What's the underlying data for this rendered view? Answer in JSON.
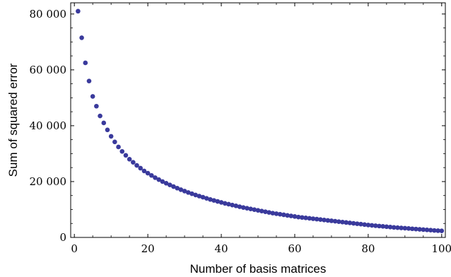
{
  "chart_data": {
    "type": "scatter",
    "title": "",
    "xlabel": "Number of basis matrices",
    "ylabel": "Sum of squared error",
    "xlim": [
      -1,
      101
    ],
    "ylim": [
      0,
      84000
    ],
    "x_ticks": [
      0,
      20,
      40,
      60,
      80,
      100
    ],
    "x_tick_labels": [
      "0",
      "20",
      "40",
      "60",
      "80",
      "100"
    ],
    "y_ticks": [
      0,
      20000,
      40000,
      60000,
      80000
    ],
    "y_tick_labels": [
      "0",
      "20 000",
      "40 000",
      "60 000",
      "80 000"
    ],
    "grid": false,
    "marker_color": "#3a3a9c",
    "series": [
      {
        "x": [
          1,
          2,
          3,
          4,
          5,
          6,
          7,
          8,
          9,
          10,
          11,
          12,
          13,
          14,
          15,
          16,
          17,
          18,
          19,
          20,
          21,
          22,
          23,
          24,
          25,
          26,
          27,
          28,
          29,
          30,
          31,
          32,
          33,
          34,
          35,
          36,
          37,
          38,
          39,
          40,
          41,
          42,
          43,
          44,
          45,
          46,
          47,
          48,
          49,
          50,
          51,
          52,
          53,
          54,
          55,
          56,
          57,
          58,
          59,
          60,
          61,
          62,
          63,
          64,
          65,
          66,
          67,
          68,
          69,
          70,
          71,
          72,
          73,
          74,
          75,
          76,
          77,
          78,
          79,
          80,
          81,
          82,
          83,
          84,
          85,
          86,
          87,
          88,
          89,
          90,
          91,
          92,
          93,
          94,
          95,
          96,
          97,
          98,
          99,
          100
        ],
        "y": [
          81000,
          71500,
          62500,
          56000,
          50500,
          47000,
          43500,
          41000,
          38500,
          36200,
          34200,
          32400,
          30800,
          29400,
          28000,
          26900,
          25800,
          24800,
          23800,
          23000,
          22200,
          21400,
          20700,
          20000,
          19400,
          18800,
          18200,
          17650,
          17100,
          16600,
          16100,
          15650,
          15200,
          14800,
          14400,
          14000,
          13600,
          13250,
          12900,
          12550,
          12200,
          11900,
          11600,
          11300,
          11000,
          10700,
          10450,
          10200,
          9950,
          9700,
          9450,
          9200,
          8950,
          8700,
          8500,
          8300,
          8100,
          7900,
          7700,
          7500,
          7300,
          7150,
          7000,
          6850,
          6700,
          6550,
          6400,
          6250,
          6100,
          5950,
          5800,
          5650,
          5500,
          5350,
          5200,
          5050,
          4900,
          4750,
          4600,
          4450,
          4320,
          4200,
          4080,
          3960,
          3840,
          3720,
          3600,
          3500,
          3400,
          3300,
          3200,
          3100,
          3000,
          2900,
          2800,
          2700,
          2600,
          2500,
          2420,
          2350
        ]
      }
    ]
  }
}
